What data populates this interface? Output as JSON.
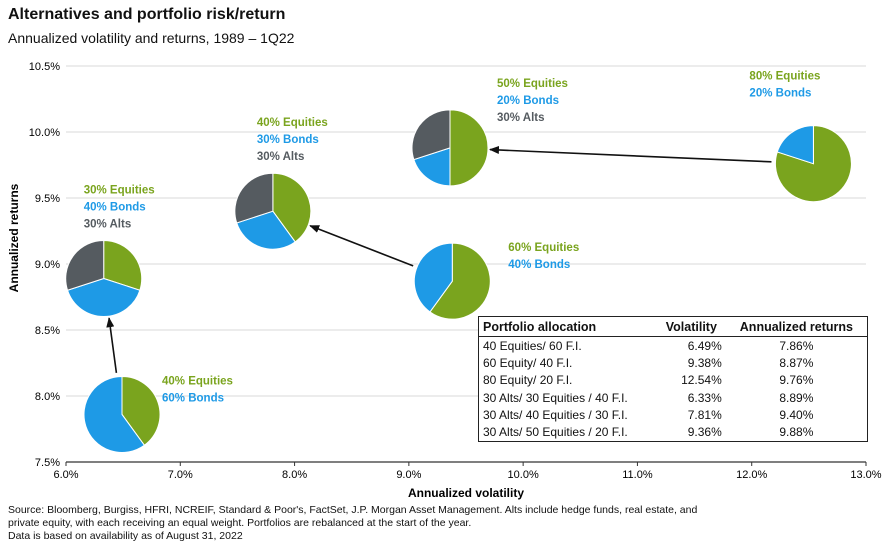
{
  "title": "Alternatives and portfolio risk/return",
  "subtitle": "Annualized volatility and returns, 1989 – 1Q22",
  "colors": {
    "equities": "#7aa41e",
    "bonds": "#1e9ae6",
    "alts": "#555b60",
    "grid": "#d9d9d9",
    "arrow": "#111111"
  },
  "chart_data": {
    "type": "scatter",
    "xlabel": "Annualized volatility",
    "ylabel": "Annualized returns",
    "xlim": [
      6.0,
      13.0
    ],
    "ylim": [
      7.5,
      10.5
    ],
    "x_ticks": [
      "6.0%",
      "7.0%",
      "8.0%",
      "9.0%",
      "10.0%",
      "11.0%",
      "12.0%",
      "13.0%"
    ],
    "y_ticks": [
      "7.5%",
      "8.0%",
      "8.5%",
      "9.0%",
      "9.5%",
      "10.0%",
      "10.5%"
    ],
    "grid": "horizontal",
    "points": [
      {
        "name": "40-equities-60-bonds",
        "x": 6.49,
        "y": 7.86,
        "equities": 40,
        "bonds": 60,
        "alts": 0,
        "labels": [
          "40% Equities",
          "60% Bonds"
        ]
      },
      {
        "name": "60-equities-40-bonds",
        "x": 9.38,
        "y": 8.87,
        "equities": 60,
        "bonds": 40,
        "alts": 0,
        "labels": [
          "60% Equities",
          "40% Bonds"
        ]
      },
      {
        "name": "80-equities-20-bonds",
        "x": 12.54,
        "y": 9.76,
        "equities": 80,
        "bonds": 20,
        "alts": 0,
        "labels": [
          "80% Equities",
          "20% Bonds"
        ]
      },
      {
        "name": "30-alts-30-equities-40-bonds",
        "x": 6.33,
        "y": 8.89,
        "equities": 30,
        "bonds": 40,
        "alts": 30,
        "labels": [
          "30% Equities",
          "40% Bonds",
          "30% Alts"
        ]
      },
      {
        "name": "30-alts-40-equities-30-bonds",
        "x": 7.81,
        "y": 9.4,
        "equities": 40,
        "bonds": 30,
        "alts": 30,
        "labels": [
          "40% Equities",
          "30% Bonds",
          "30% Alts"
        ]
      },
      {
        "name": "30-alts-50-equities-20-bonds",
        "x": 9.36,
        "y": 9.88,
        "equities": 50,
        "bonds": 20,
        "alts": 30,
        "labels": [
          "50% Equities",
          "20% Bonds",
          "30% Alts"
        ]
      }
    ],
    "arrows": [
      {
        "from": "40-equities-60-bonds",
        "to": "30-alts-30-equities-40-bonds"
      },
      {
        "from": "60-equities-40-bonds",
        "to": "30-alts-40-equities-30-bonds"
      },
      {
        "from": "80-equities-20-bonds",
        "to": "30-alts-50-equities-20-bonds"
      }
    ],
    "table": {
      "headers": [
        "Portfolio allocation",
        "Volatility",
        "Annualized returns"
      ],
      "rows": [
        [
          "40 Equities/ 60 F.I.",
          "6.49%",
          "7.86%"
        ],
        [
          "60 Equity/ 40 F.I.",
          "9.38%",
          "8.87%"
        ],
        [
          "80 Equity/ 20 F.I.",
          "12.54%",
          "9.76%"
        ],
        [
          "30 Alts/ 30 Equities / 40 F.I.",
          "6.33%",
          "8.89%"
        ],
        [
          "30 Alts/ 40 Equities / 30 F.I.",
          "7.81%",
          "9.40%"
        ],
        [
          "30 Alts/ 50 Equities / 20 F.I.",
          "9.36%",
          "9.88%"
        ]
      ]
    }
  },
  "footnote": {
    "line1": "Source: Bloomberg, Burgiss, HFRI, NCREIF, Standard & Poor's, FactSet, J.P. Morgan Asset Management. Alts include hedge funds, real estate, and",
    "line2": "private equity, with each receiving an equal weight. Portfolios are rebalanced at the start of the year.",
    "line3": "Data is based on availability as of August 31, 2022"
  }
}
